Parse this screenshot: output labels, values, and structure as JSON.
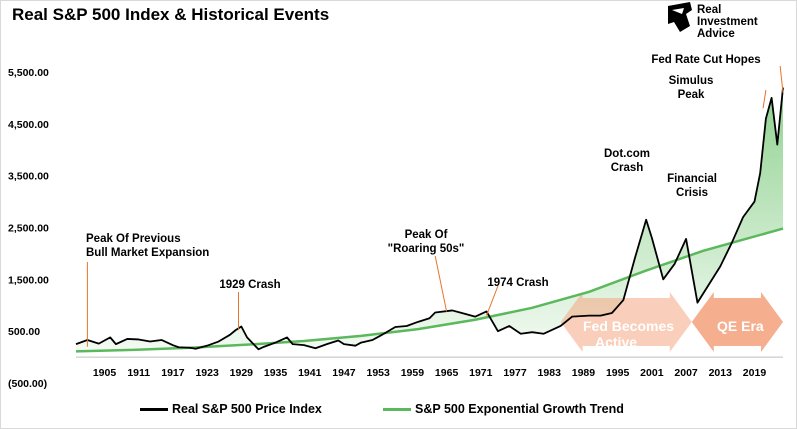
{
  "title": "Real S&P 500 Index & Historical Events",
  "logo": {
    "line1": "Real",
    "line2": "Investment",
    "line3": "Advice"
  },
  "legend": {
    "price": "Real S&P 500 Price Index",
    "trend": "S&P 500 Exponential Growth Trend"
  },
  "colors": {
    "price": "#000000",
    "trend": "#5cb85c",
    "fill": "#6cc36c",
    "arrow": "#f4a582"
  },
  "chart_data": {
    "type": "line",
    "title": "Real S&P 500 Index & Historical Events",
    "xlim": [
      1900,
      2024
    ],
    "ylim": [
      -500,
      5500
    ],
    "y_ticks": [
      "(500.00)",
      "500.00",
      "1,500.00",
      "2,500.00",
      "3,500.00",
      "4,500.00",
      "5,500.00"
    ],
    "y_tick_values": [
      -500,
      500,
      1500,
      2500,
      3500,
      4500,
      5500
    ],
    "x_ticks": [
      "1905",
      "1911",
      "1917",
      "1923",
      "1929",
      "1935",
      "1941",
      "1947",
      "1953",
      "1959",
      "1965",
      "1971",
      "1977",
      "1983",
      "1989",
      "1995",
      "2001",
      "2007",
      "2013",
      "2019"
    ],
    "x_tick_values": [
      1905,
      1911,
      1917,
      1923,
      1929,
      1935,
      1941,
      1947,
      1953,
      1959,
      1965,
      1971,
      1977,
      1983,
      1989,
      1995,
      2001,
      2007,
      2013,
      2019
    ],
    "grid": false,
    "legend_position": "bottom",
    "series": [
      {
        "name": "Real S&P 500 Price Index",
        "x": [
          1900,
          1902,
          1904,
          1906,
          1907,
          1909,
          1911,
          1913,
          1915,
          1917,
          1918,
          1920,
          1921,
          1923,
          1925,
          1927,
          1928,
          1929,
          1930,
          1932,
          1933,
          1935,
          1937,
          1938,
          1940,
          1942,
          1944,
          1946,
          1947,
          1949,
          1950,
          1952,
          1954,
          1956,
          1958,
          1960,
          1962,
          1963,
          1966,
          1968,
          1970,
          1972,
          1974,
          1976,
          1978,
          1980,
          1982,
          1985,
          1987,
          1990,
          1992,
          1994,
          1996,
          1998,
          2000,
          2001,
          2003,
          2005,
          2007,
          2009,
          2011,
          2013,
          2015,
          2017,
          2019,
          2020,
          2021,
          2022,
          2023,
          2024
        ],
        "y": [
          250,
          330,
          260,
          380,
          250,
          350,
          340,
          300,
          330,
          230,
          190,
          180,
          160,
          220,
          300,
          430,
          520,
          590,
          380,
          150,
          200,
          280,
          380,
          250,
          230,
          170,
          250,
          320,
          250,
          220,
          280,
          330,
          450,
          580,
          600,
          680,
          750,
          860,
          900,
          840,
          780,
          880,
          500,
          600,
          450,
          480,
          450,
          600,
          780,
          800,
          800,
          850,
          1100,
          1900,
          2650,
          2300,
          1500,
          1800,
          2280,
          1050,
          1400,
          1750,
          2200,
          2700,
          3000,
          3550,
          4600,
          5000,
          4100,
          5200
        ]
      },
      {
        "name": "S&P 500 Exponential Growth Trend",
        "x": [
          1900,
          1910,
          1920,
          1930,
          1940,
          1950,
          1960,
          1970,
          1980,
          1990,
          2000,
          2010,
          2024
        ],
        "y": [
          110,
          140,
          180,
          240,
          310,
          410,
          540,
          720,
          950,
          1260,
          1670,
          2050,
          2480
        ]
      }
    ],
    "annotations": [
      {
        "text": "Peak Of Previous Bull Market Expansion",
        "x": 1902
      },
      {
        "text": "1929 Crash",
        "x": 1929
      },
      {
        "text": "Peak Of \"Roaring 50s\"",
        "x": 1966
      },
      {
        "text": "1974 Crash",
        "x": 1974
      },
      {
        "text": "Dot.com Crash",
        "x": 2000
      },
      {
        "text": "Financial Crisis",
        "x": 2008
      },
      {
        "text": "Simulus Peak",
        "x": 2021
      },
      {
        "text": "Fed Rate Cut Hopes",
        "x": 2024
      }
    ],
    "eras": [
      {
        "label": "Fed Becomes Active",
        "x_start": 1985,
        "x_end": 2008
      },
      {
        "label": "QE Era",
        "x_start": 2008,
        "x_end": 2024
      }
    ]
  }
}
